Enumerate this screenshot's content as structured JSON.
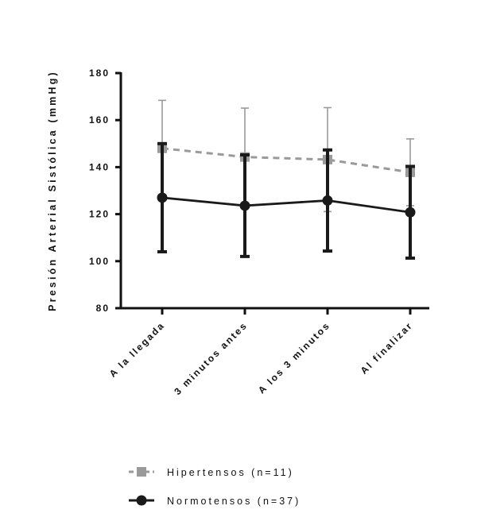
{
  "chart_data": {
    "type": "line",
    "title": "",
    "xlabel": "",
    "ylabel": "Presión Arterial Sistólica (mmHg)",
    "ylim": [
      80,
      180
    ],
    "yticks": [
      80,
      100,
      120,
      140,
      160,
      180
    ],
    "categories": [
      "A la llegada",
      "3 minutos antes",
      "A los 3 minutos",
      "Al finalizar"
    ],
    "legend_position": "bottom-left",
    "grid": false,
    "series": [
      {
        "name": "Hipertensos (n=11)",
        "color": "#9a9a9a",
        "style": "dashed",
        "marker": "square",
        "values": [
          148,
          144.3,
          143.2,
          137.8
        ],
        "error": [
          20.4,
          20.8,
          22.1,
          14.2
        ]
      },
      {
        "name": "Normotensos (n=37)",
        "color": "#1a1a1a",
        "style": "solid",
        "marker": "circle",
        "values": [
          127,
          123.6,
          125.8,
          120.8
        ],
        "error": [
          23,
          21.6,
          21.5,
          19.5
        ]
      }
    ]
  }
}
